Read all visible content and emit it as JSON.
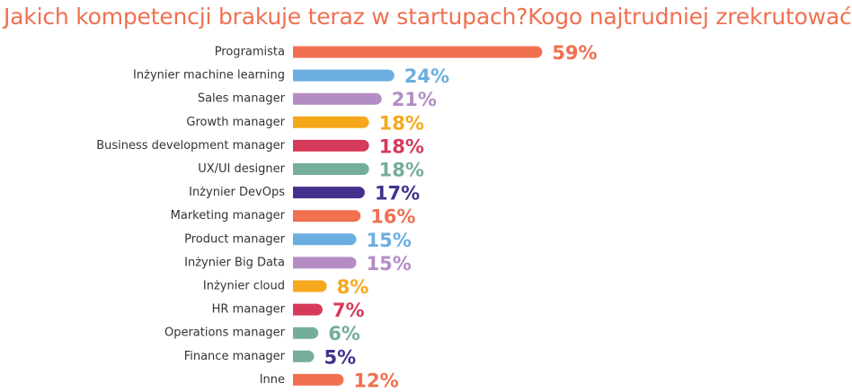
{
  "chart_data": {
    "type": "bar",
    "orientation": "horizontal",
    "title": "Jakich kompetencji brakuje teraz w startupach?Kogo najtrudniej zrekrutować?",
    "xlabel": "",
    "ylabel": "",
    "grid": false,
    "categories": [
      "Programista",
      "Inżynier machine learning",
      "Sales manager",
      "Growth manager",
      "Business development manager",
      "UX/UI designer",
      "Inżynier DevOps",
      "Marketing manager",
      "Product manager",
      "Inżynier Big Data",
      "Inżynier cloud",
      "HR manager",
      "Operations manager",
      "Finance manager",
      "Inne"
    ],
    "values": [
      59,
      24,
      21,
      18,
      18,
      18,
      17,
      16,
      15,
      15,
      8,
      7,
      6,
      5,
      12
    ],
    "value_labels": [
      "59%",
      "24%",
      "21%",
      "18%",
      "18%",
      "18%",
      "17%",
      "16%",
      "15%",
      "15%",
      "8%",
      "7%",
      "6%",
      "5%",
      "12%"
    ],
    "colors": [
      "#f07050",
      "#6aafe0",
      "#b48cc4",
      "#f5a81c",
      "#d63a5a",
      "#74ae9a",
      "#44308c",
      "#f07050",
      "#6aafe0",
      "#b48cc4",
      "#f5a81c",
      "#d63a5a",
      "#74ae9a",
      "#74ae9a",
      "#f07050"
    ],
    "value_label_colors": [
      "#f07050",
      "#6aafe0",
      "#b48cc4",
      "#f5a81c",
      "#d63a5a",
      "#74ae9a",
      "#44308c",
      "#f07050",
      "#6aafe0",
      "#b48cc4",
      "#f5a81c",
      "#d63a5a",
      "#74ae9a",
      "#44308c",
      "#f07050"
    ],
    "title_color": "#f07050"
  }
}
